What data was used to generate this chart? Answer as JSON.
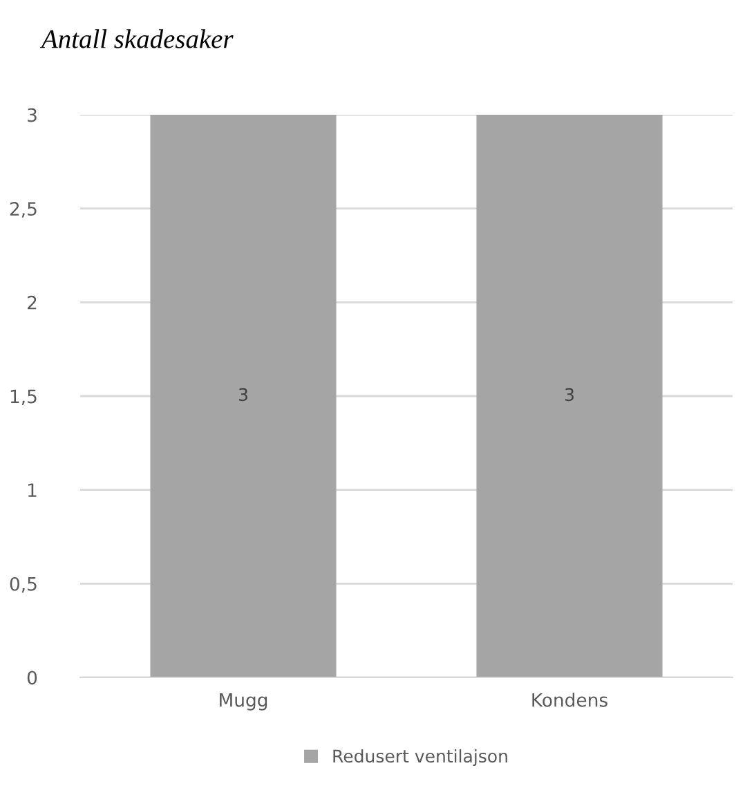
{
  "chart_data": {
    "type": "bar",
    "title": "Antall skadesaker",
    "categories": [
      "Mugg",
      "Kondens"
    ],
    "series": [
      {
        "name": "Redusert ventilajson",
        "color": "#a5a5a5",
        "values": [
          3,
          3
        ]
      }
    ],
    "ylim": [
      0,
      3
    ],
    "yticks": [
      0,
      {
        "value": 0.5,
        "label": "0,5"
      },
      1,
      {
        "value": 1.5,
        "label": "1,5"
      },
      2,
      {
        "value": 2.5,
        "label": "2,5"
      },
      3
    ],
    "grid": "y",
    "legend": "bottom",
    "data_labels": true
  }
}
